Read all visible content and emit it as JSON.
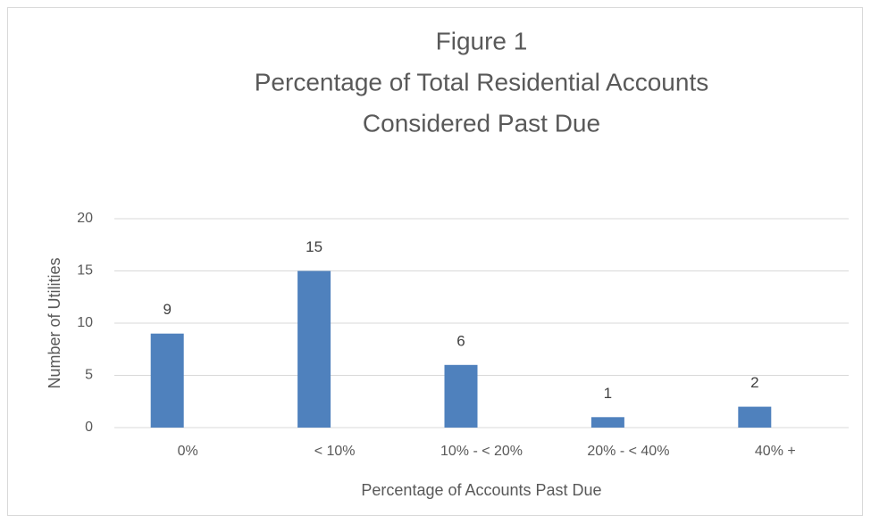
{
  "chart_data": {
    "type": "bar",
    "title": [
      "Figure 1",
      "Percentage of Total Residential Accounts",
      "Considered Past Due"
    ],
    "x_label": "Percentage of Accounts Past Due",
    "y_label": "Number of Utilities",
    "categories": [
      "0%",
      "< 10%",
      "10% - < 20%",
      "20% - < 40%",
      "40% +"
    ],
    "values": [
      9,
      15,
      6,
      1,
      2
    ],
    "color": "#4f81bd",
    "ylim": [
      0,
      20
    ],
    "yticks": [
      0,
      5,
      10,
      15,
      20
    ],
    "grid": true
  }
}
